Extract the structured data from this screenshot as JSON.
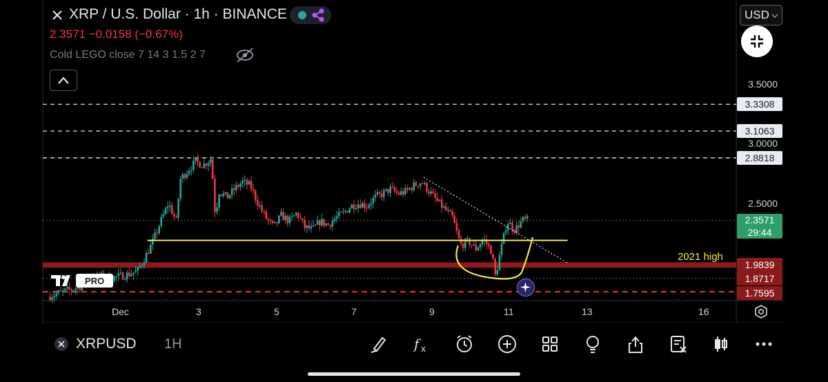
{
  "header": {
    "title": "XRP / U.S. Dollar · 1h · BINANCE",
    "price_line": "2.3571 −0.0158 (−0.67%)",
    "indicator": "Cold LEGO close 7 14 3 1.5 2 7"
  },
  "currency_selector": {
    "label": "USD"
  },
  "colors": {
    "down": "#f23645",
    "up": "#26a69a",
    "support": "#f5e94a",
    "resistance_band": "#8b1a1a",
    "current_price": "#2e9e6a"
  },
  "chart_data": {
    "type": "candlestick",
    "symbol": "XRPUSD",
    "interval": "1H",
    "exchange": "BINANCE",
    "y_ticks": [
      "3.5000",
      "3.0000",
      "2.5000"
    ],
    "x_ticks": [
      {
        "label": "Dec",
        "day": 1
      },
      {
        "label": "3",
        "day": 3
      },
      {
        "label": "5",
        "day": 5
      },
      {
        "label": "7",
        "day": 7
      },
      {
        "label": "9",
        "day": 9
      },
      {
        "label": "11",
        "day": 11
      },
      {
        "label": "13",
        "day": 13
      },
      {
        "label": "16",
        "day": 16
      }
    ],
    "ylim": [
      1.72,
      3.82
    ],
    "xlim": [
      -0.8,
      17.3
    ],
    "levels": [
      {
        "value": 3.3308,
        "label": "3.3308",
        "style": "dashed-white"
      },
      {
        "value": 3.1063,
        "label": "3.1063",
        "style": "dashed-white"
      },
      {
        "value": 2.8818,
        "label": "2.8818",
        "style": "dashed-white"
      },
      {
        "value": 1.9839,
        "label": "1.9839",
        "style": "red-band"
      },
      {
        "value": 1.8717,
        "label": "1.8717",
        "style": "dotted-grey"
      },
      {
        "value": 1.7595,
        "label": "1.7595",
        "style": "dashed-red"
      }
    ],
    "support_line": {
      "value": 2.19,
      "start_day": 1.7,
      "end_day": 12.5
    },
    "current_price": {
      "value": 2.3571,
      "label": "2.3571",
      "countdown": "29:44"
    },
    "annotation": "2021 high",
    "trendline": [
      {
        "day": 8.8,
        "price": 2.72
      },
      {
        "day": 12.5,
        "price": 2.0
      }
    ],
    "price_path": [
      [
        -0.8,
        1.72
      ],
      [
        -0.4,
        1.76
      ],
      [
        0.0,
        1.8
      ],
      [
        0.3,
        1.86
      ],
      [
        0.6,
        1.89
      ],
      [
        0.9,
        1.88
      ],
      [
        1.2,
        1.9
      ],
      [
        1.5,
        1.93
      ],
      [
        1.7,
        2.05
      ],
      [
        1.9,
        2.18
      ],
      [
        2.1,
        2.35
      ],
      [
        2.3,
        2.5
      ],
      [
        2.5,
        2.35
      ],
      [
        2.6,
        2.7
      ],
      [
        2.8,
        2.78
      ],
      [
        3.0,
        2.85
      ],
      [
        3.2,
        2.82
      ],
      [
        3.4,
        2.88
      ],
      [
        3.5,
        2.4
      ],
      [
        3.6,
        2.6
      ],
      [
        3.8,
        2.55
      ],
      [
        4.0,
        2.62
      ],
      [
        4.2,
        2.68
      ],
      [
        4.4,
        2.65
      ],
      [
        4.6,
        2.5
      ],
      [
        4.8,
        2.38
      ],
      [
        5.0,
        2.3
      ],
      [
        5.2,
        2.4
      ],
      [
        5.4,
        2.35
      ],
      [
        5.6,
        2.42
      ],
      [
        5.8,
        2.3
      ],
      [
        6.0,
        2.28
      ],
      [
        6.2,
        2.35
      ],
      [
        6.4,
        2.32
      ],
      [
        6.6,
        2.38
      ],
      [
        6.8,
        2.42
      ],
      [
        7.0,
        2.48
      ],
      [
        7.2,
        2.5
      ],
      [
        7.4,
        2.48
      ],
      [
        7.6,
        2.55
      ],
      [
        7.8,
        2.58
      ],
      [
        8.0,
        2.62
      ],
      [
        8.2,
        2.58
      ],
      [
        8.4,
        2.6
      ],
      [
        8.6,
        2.65
      ],
      [
        8.8,
        2.68
      ],
      [
        9.0,
        2.6
      ],
      [
        9.2,
        2.52
      ],
      [
        9.4,
        2.45
      ],
      [
        9.6,
        2.38
      ],
      [
        9.8,
        2.15
      ],
      [
        10.0,
        2.18
      ],
      [
        10.2,
        2.12
      ],
      [
        10.4,
        2.2
      ],
      [
        10.6,
        2.1
      ],
      [
        10.7,
        1.88
      ],
      [
        10.8,
        2.05
      ],
      [
        11.0,
        2.35
      ],
      [
        11.2,
        2.28
      ],
      [
        11.4,
        2.36
      ],
      [
        11.5,
        2.36
      ]
    ]
  },
  "bottom_bar": {
    "symbol": "XRPUSD",
    "interval": "1H",
    "tools": [
      "brush-icon",
      "fx-icon",
      "alarm-icon",
      "plus-circle-icon",
      "grid-icon",
      "lightbulb-icon",
      "share-icon",
      "checklist-icon",
      "candles-icon",
      "more-icon"
    ]
  }
}
